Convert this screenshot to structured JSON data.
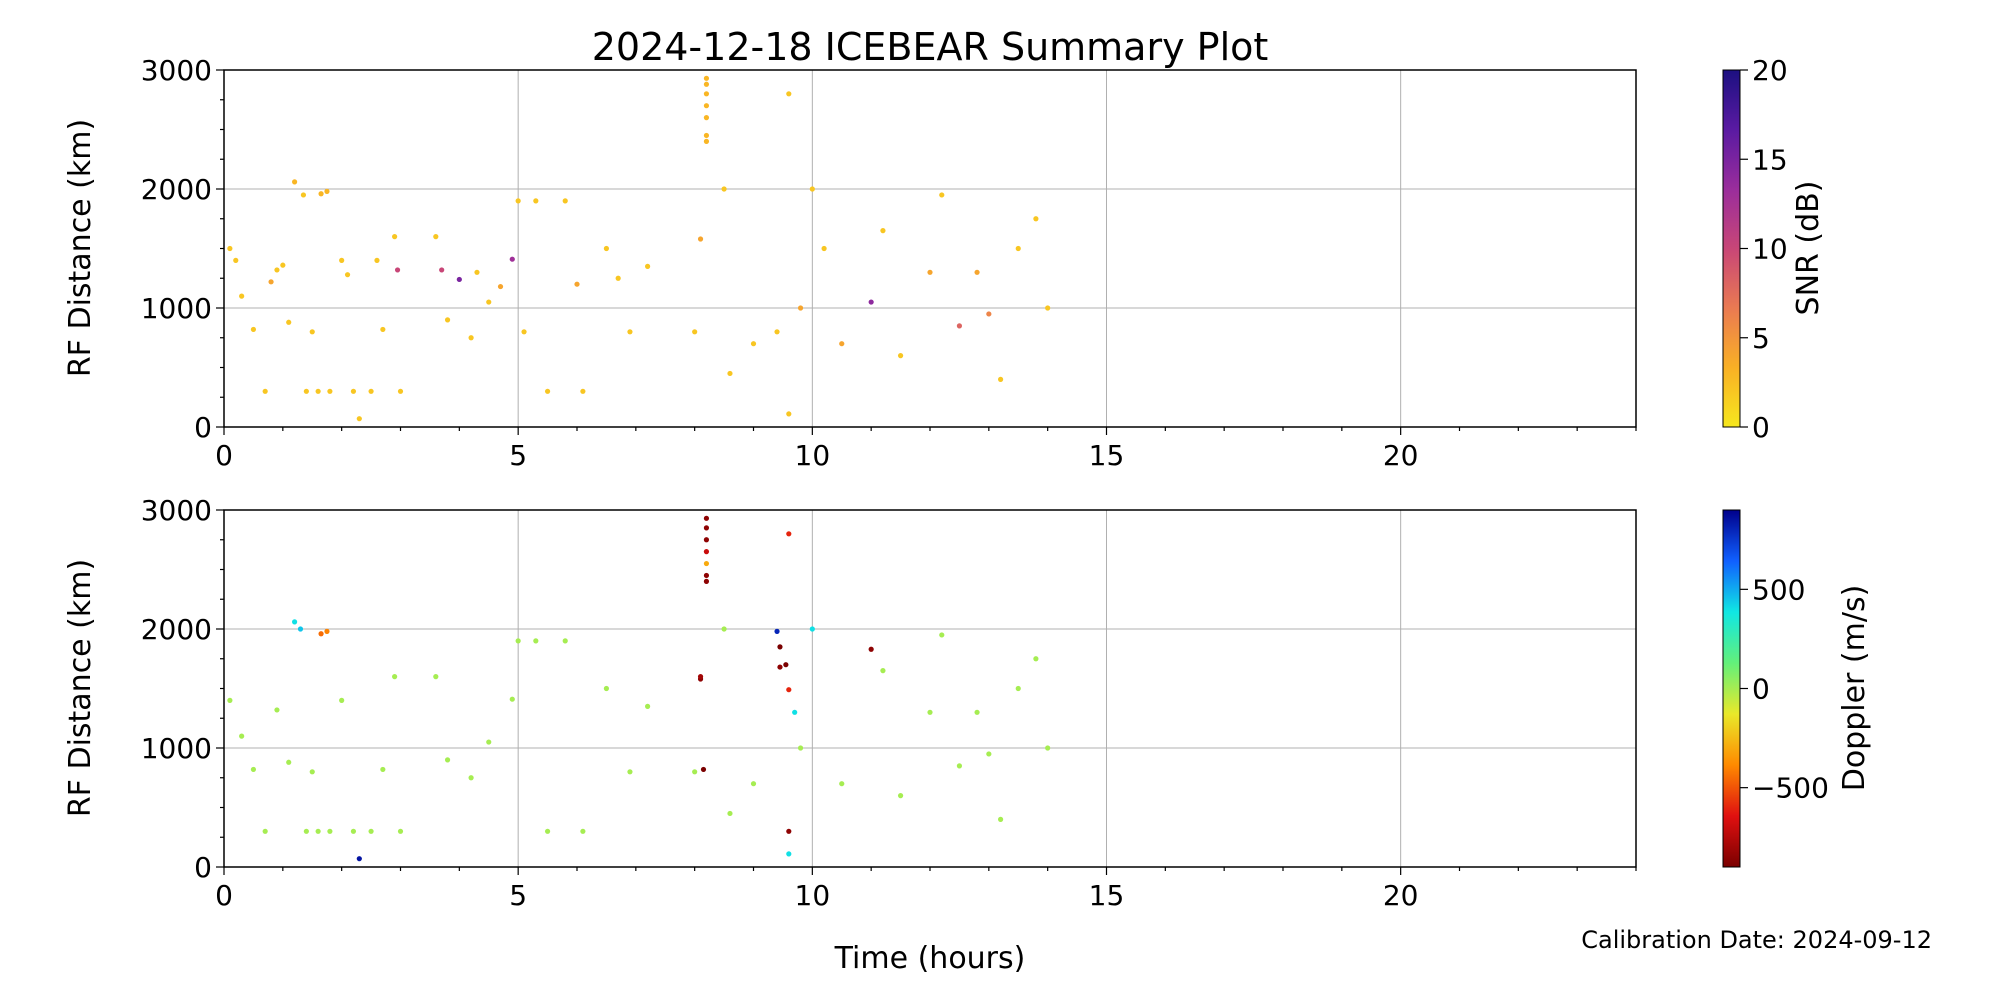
{
  "figure": {
    "title": "2024-12-18 ICEBEAR Summary Plot",
    "calibration_note": "Calibration Date: 2024-09-12",
    "xlabel": "Time (hours)"
  },
  "chart_data": [
    {
      "type": "scatter",
      "name": "snr-panel",
      "ylabel": "RF Distance (km)",
      "xlim": [
        0,
        24
      ],
      "ylim": [
        0,
        3000
      ],
      "x_ticks": [
        0,
        5,
        10,
        15,
        20
      ],
      "x_tick_labels": [
        "0",
        "5",
        "10",
        "15",
        "20"
      ],
      "y_ticks": [
        0,
        1000,
        2000,
        3000
      ],
      "y_tick_labels": [
        "0",
        "1000",
        "2000",
        "3000"
      ],
      "grid": true,
      "colorbar": {
        "label": "SNR (dB)",
        "range": [
          0,
          20
        ],
        "ticks": [
          0,
          5,
          10,
          15,
          20
        ],
        "tick_labels": [
          "0",
          "5",
          "10",
          "15",
          "20"
        ],
        "colormap": [
          "#f6e71e",
          "#f9b025",
          "#ea7a52",
          "#c84677",
          "#9a2d9c",
          "#5a1aa2",
          "#1c1081"
        ]
      },
      "points": [
        [
          0.1,
          1500,
          2
        ],
        [
          0.2,
          1400,
          2
        ],
        [
          0.3,
          1100,
          2
        ],
        [
          0.5,
          820,
          2
        ],
        [
          0.7,
          300,
          2
        ],
        [
          0.8,
          1220,
          4
        ],
        [
          0.9,
          1320,
          2
        ],
        [
          1.0,
          1360,
          2
        ],
        [
          1.1,
          880,
          2
        ],
        [
          1.2,
          2060,
          3
        ],
        [
          1.35,
          1950,
          2
        ],
        [
          1.4,
          300,
          2
        ],
        [
          1.5,
          800,
          2
        ],
        [
          1.6,
          300,
          2
        ],
        [
          1.65,
          1960,
          3
        ],
        [
          1.75,
          1980,
          3
        ],
        [
          1.8,
          300,
          2
        ],
        [
          2.0,
          1400,
          2
        ],
        [
          2.1,
          1280,
          2
        ],
        [
          2.2,
          300,
          2
        ],
        [
          2.3,
          70,
          2
        ],
        [
          2.5,
          300,
          2
        ],
        [
          2.6,
          1400,
          2
        ],
        [
          2.7,
          820,
          2
        ],
        [
          2.9,
          1600,
          2
        ],
        [
          2.95,
          1320,
          10
        ],
        [
          3.0,
          300,
          2
        ],
        [
          3.6,
          1600,
          2
        ],
        [
          3.7,
          1320,
          10
        ],
        [
          3.8,
          900,
          2
        ],
        [
          4.0,
          1240,
          15
        ],
        [
          4.2,
          750,
          2
        ],
        [
          4.3,
          1300,
          2
        ],
        [
          4.5,
          1050,
          2
        ],
        [
          4.7,
          1180,
          4
        ],
        [
          4.9,
          1410,
          13
        ],
        [
          5.0,
          1900,
          2
        ],
        [
          5.1,
          800,
          2
        ],
        [
          5.3,
          1900,
          2
        ],
        [
          5.5,
          300,
          2
        ],
        [
          5.8,
          1900,
          2
        ],
        [
          6.0,
          1200,
          4
        ],
        [
          6.1,
          300,
          2
        ],
        [
          6.5,
          1500,
          2
        ],
        [
          6.7,
          1250,
          2
        ],
        [
          6.9,
          800,
          2
        ],
        [
          7.2,
          1350,
          2
        ],
        [
          8.0,
          800,
          2
        ],
        [
          8.1,
          1580,
          4
        ],
        [
          8.2,
          2930,
          3
        ],
        [
          8.2,
          2880,
          3
        ],
        [
          8.2,
          2800,
          3
        ],
        [
          8.2,
          2700,
          3
        ],
        [
          8.2,
          2600,
          3
        ],
        [
          8.2,
          2450,
          3
        ],
        [
          8.2,
          2400,
          3
        ],
        [
          8.5,
          2000,
          2
        ],
        [
          8.6,
          450,
          2
        ],
        [
          9.0,
          700,
          2
        ],
        [
          9.4,
          800,
          2
        ],
        [
          9.6,
          2800,
          2
        ],
        [
          9.6,
          110,
          2
        ],
        [
          9.8,
          1000,
          4
        ],
        [
          10.0,
          2000,
          2
        ],
        [
          10.2,
          1500,
          2
        ],
        [
          10.5,
          700,
          4
        ],
        [
          11.0,
          1050,
          14
        ],
        [
          11.2,
          1650,
          2
        ],
        [
          11.5,
          600,
          2
        ],
        [
          12.0,
          1300,
          4
        ],
        [
          12.2,
          1950,
          2
        ],
        [
          12.5,
          850,
          8
        ],
        [
          12.8,
          1300,
          4
        ],
        [
          13.0,
          950,
          6
        ],
        [
          13.2,
          400,
          2
        ],
        [
          13.5,
          1500,
          2
        ],
        [
          13.8,
          1750,
          2
        ],
        [
          14.0,
          1000,
          2
        ]
      ]
    },
    {
      "type": "scatter",
      "name": "doppler-panel",
      "ylabel": "RF Distance (km)",
      "xlim": [
        0,
        24
      ],
      "ylim": [
        0,
        3000
      ],
      "x_ticks": [
        0,
        5,
        10,
        15,
        20
      ],
      "x_tick_labels": [
        "0",
        "5",
        "10",
        "15",
        "20"
      ],
      "y_ticks": [
        0,
        1000,
        2000,
        3000
      ],
      "y_tick_labels": [
        "0",
        "1000",
        "2000",
        "3000"
      ],
      "grid": true,
      "colorbar": {
        "label": "Doppler (m/s)",
        "range": [
          -900,
          900
        ],
        "ticks": [
          -500,
          0,
          500
        ],
        "tick_labels": [
          "−500",
          "0",
          "500"
        ],
        "colormap": [
          "#7a0000",
          "#e01010",
          "#ff8a00",
          "#e9e92a",
          "#63f07a",
          "#10e7e3",
          "#1060ff",
          "#00008b"
        ]
      },
      "points": [
        [
          0.1,
          1400,
          0
        ],
        [
          0.3,
          1100,
          0
        ],
        [
          0.5,
          820,
          0
        ],
        [
          0.7,
          300,
          0
        ],
        [
          0.9,
          1320,
          0
        ],
        [
          1.1,
          880,
          0
        ],
        [
          1.2,
          2060,
          400
        ],
        [
          1.3,
          2000,
          450
        ],
        [
          1.4,
          300,
          0
        ],
        [
          1.5,
          800,
          0
        ],
        [
          1.6,
          300,
          0
        ],
        [
          1.65,
          1960,
          -450
        ],
        [
          1.75,
          1980,
          -400
        ],
        [
          1.8,
          300,
          0
        ],
        [
          2.0,
          1400,
          0
        ],
        [
          2.2,
          300,
          0
        ],
        [
          2.3,
          70,
          850
        ],
        [
          2.5,
          300,
          0
        ],
        [
          2.7,
          820,
          0
        ],
        [
          2.9,
          1600,
          0
        ],
        [
          3.0,
          300,
          0
        ],
        [
          3.6,
          1600,
          0
        ],
        [
          3.8,
          900,
          0
        ],
        [
          4.2,
          750,
          0
        ],
        [
          4.5,
          1050,
          0
        ],
        [
          4.9,
          1410,
          0
        ],
        [
          5.0,
          1900,
          0
        ],
        [
          5.3,
          1900,
          0
        ],
        [
          5.5,
          300,
          0
        ],
        [
          5.8,
          1900,
          0
        ],
        [
          6.1,
          300,
          0
        ],
        [
          6.5,
          1500,
          0
        ],
        [
          6.9,
          800,
          0
        ],
        [
          7.2,
          1350,
          0
        ],
        [
          8.0,
          800,
          0
        ],
        [
          8.1,
          1580,
          -850
        ],
        [
          8.1,
          1600,
          -800
        ],
        [
          8.15,
          820,
          -900
        ],
        [
          8.2,
          2930,
          -850
        ],
        [
          8.2,
          2850,
          -850
        ],
        [
          8.2,
          2750,
          -850
        ],
        [
          8.2,
          2650,
          -700
        ],
        [
          8.2,
          2550,
          -300
        ],
        [
          8.2,
          2450,
          -850
        ],
        [
          8.2,
          2400,
          -850
        ],
        [
          8.5,
          2000,
          0
        ],
        [
          8.6,
          450,
          0
        ],
        [
          9.0,
          700,
          0
        ],
        [
          9.4,
          1980,
          800
        ],
        [
          9.45,
          1850,
          -900
        ],
        [
          9.45,
          1680,
          -850
        ],
        [
          9.55,
          1700,
          -900
        ],
        [
          9.6,
          2800,
          -600
        ],
        [
          9.6,
          1490,
          -600
        ],
        [
          9.6,
          300,
          -850
        ],
        [
          9.6,
          110,
          400
        ],
        [
          9.7,
          1300,
          400
        ],
        [
          9.8,
          1000,
          0
        ],
        [
          10.0,
          2000,
          400
        ],
        [
          10.5,
          700,
          0
        ],
        [
          11.0,
          1830,
          -850
        ],
        [
          11.2,
          1650,
          0
        ],
        [
          11.5,
          600,
          0
        ],
        [
          12.0,
          1300,
          0
        ],
        [
          12.2,
          1950,
          0
        ],
        [
          12.5,
          850,
          0
        ],
        [
          12.8,
          1300,
          0
        ],
        [
          13.0,
          950,
          0
        ],
        [
          13.2,
          400,
          0
        ],
        [
          13.5,
          1500,
          0
        ],
        [
          13.8,
          1750,
          0
        ],
        [
          14.0,
          1000,
          0
        ]
      ]
    }
  ]
}
